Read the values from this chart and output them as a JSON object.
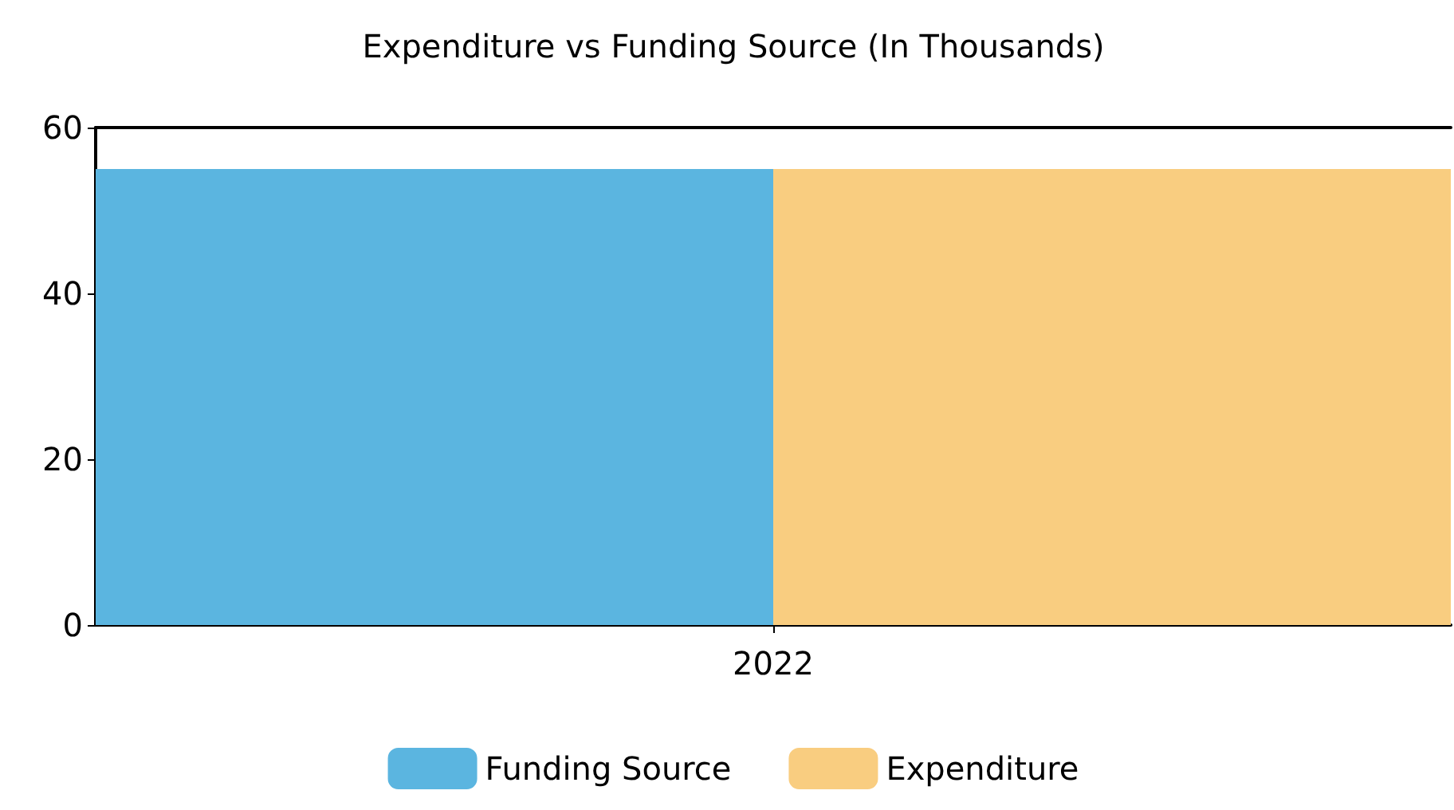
{
  "chart_data": {
    "type": "bar",
    "title": "Expenditure vs Funding Source (In Thousands)",
    "categories": [
      "2022"
    ],
    "series": [
      {
        "name": "Funding Source",
        "color": "#5bb5e0",
        "values": [
          55
        ]
      },
      {
        "name": "Expenditure",
        "color": "#f9cd80",
        "values": [
          55
        ]
      }
    ],
    "ylim": [
      0,
      60
    ],
    "yticks": [
      0,
      20,
      40,
      60
    ],
    "legend": "bottom"
  }
}
